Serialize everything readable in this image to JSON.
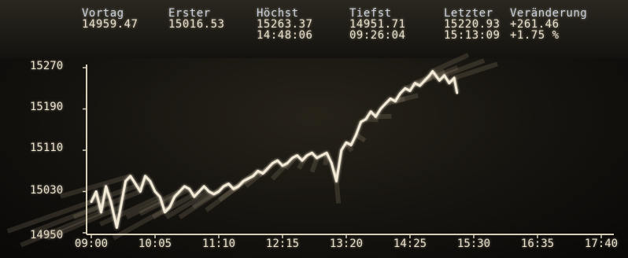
{
  "colors": {
    "background": "#15130f",
    "line": "#f2ead6",
    "text": "#e9e0cb",
    "header_label": "#c9d1de"
  },
  "header": {
    "columns": [
      {
        "label": "Vortag",
        "value": "14959.47",
        "time": ""
      },
      {
        "label": "Erster",
        "value": "15016.53",
        "time": ""
      },
      {
        "label": "Höchst",
        "value": "15263.37",
        "time": "14:48:06"
      },
      {
        "label": "Tiefst",
        "value": "14951.71",
        "time": "09:26:04"
      },
      {
        "label": "Letzter",
        "value": "15220.93",
        "time": "15:13:09"
      },
      {
        "label": "Veränderung",
        "value": "+261.46",
        "time": "+1.75 %"
      }
    ]
  },
  "chart_data": {
    "type": "line",
    "x_ticks": [
      "09:00",
      "10:05",
      "11:10",
      "12:15",
      "13:20",
      "14:25",
      "15:30",
      "16:35",
      "17:40"
    ],
    "y_ticks": [
      "14950",
      "15030",
      "15110",
      "15190",
      "15270"
    ],
    "xlim": [
      "09:00",
      "17:40"
    ],
    "ylim": [
      14950,
      15270
    ],
    "grid": false,
    "series": [
      {
        "x": [
          "09:00",
          "09:05",
          "09:10",
          "09:15",
          "09:20",
          "09:26",
          "09:30",
          "09:35",
          "09:40",
          "09:45",
          "09:50",
          "09:55",
          "10:00",
          "10:05",
          "10:10",
          "10:15",
          "10:20",
          "10:25",
          "10:30",
          "10:35",
          "10:40",
          "10:45",
          "10:50",
          "10:55",
          "11:00",
          "11:05",
          "11:10",
          "11:15",
          "11:20",
          "11:25",
          "11:30",
          "11:35",
          "11:40",
          "11:45",
          "11:50",
          "11:55",
          "12:00",
          "12:05",
          "12:10",
          "12:15",
          "12:20",
          "12:25",
          "12:30",
          "12:35",
          "12:40",
          "12:45",
          "12:50",
          "12:55",
          "13:00",
          "13:05",
          "13:10",
          "13:15",
          "13:20",
          "13:25",
          "13:30",
          "13:35",
          "13:40",
          "13:45",
          "13:50",
          "13:55",
          "14:00",
          "14:05",
          "14:10",
          "14:15",
          "14:20",
          "14:25",
          "14:30",
          "14:35",
          "14:40",
          "14:45",
          "14:48",
          "14:55",
          "15:00",
          "15:05",
          "15:10",
          "15:13"
        ],
        "y": [
          15010,
          15030,
          14990,
          15040,
          15010,
          14960,
          15000,
          15050,
          15060,
          15045,
          15030,
          15060,
          15050,
          15030,
          15020,
          14990,
          15000,
          15020,
          15030,
          15040,
          15035,
          15020,
          15030,
          15040,
          15030,
          15025,
          15030,
          15040,
          15045,
          15035,
          15040,
          15050,
          15055,
          15060,
          15070,
          15065,
          15075,
          15085,
          15090,
          15080,
          15085,
          15095,
          15100,
          15090,
          15100,
          15105,
          15095,
          15100,
          15105,
          15085,
          15050,
          15110,
          15125,
          15120,
          15140,
          15165,
          15170,
          15185,
          15175,
          15190,
          15200,
          15210,
          15205,
          15220,
          15230,
          15225,
          15240,
          15235,
          15245,
          15255,
          15263,
          15245,
          15255,
          15240,
          15250,
          15221
        ]
      }
    ]
  }
}
